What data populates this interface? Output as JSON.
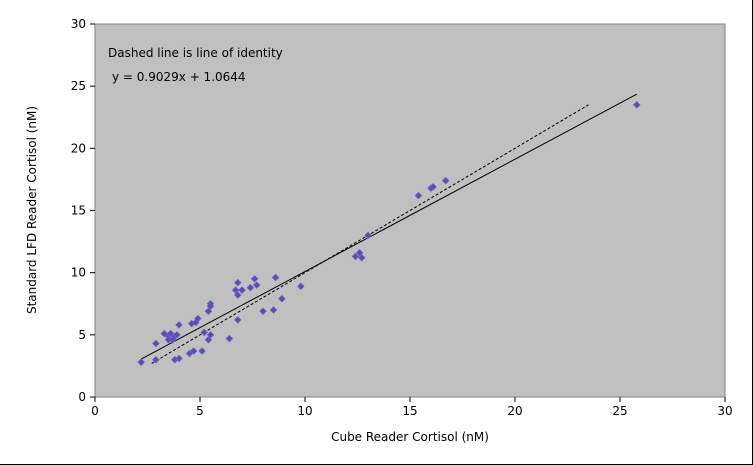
{
  "chart_data": {
    "type": "scatter",
    "xlabel": "Cube Reader Cortisol (nM)",
    "ylabel": "Standard LFD Reader Cortisol (nM)",
    "xlim": [
      0,
      30
    ],
    "ylim": [
      0,
      30
    ],
    "x_ticks": [
      "0",
      "5",
      "10",
      "15",
      "20",
      "25",
      "30"
    ],
    "y_ticks": [
      "0",
      "5",
      "10",
      "15",
      "20",
      "25",
      "30"
    ],
    "annotations": [
      "Dashed line is line of identity",
      "y = 0.9029x + 1.0644"
    ],
    "colors": {
      "plot_background": "#c0c0c0",
      "marker_fill": "#7b3fa0",
      "marker_edge": "#4a6fd6",
      "line": "#000000"
    },
    "grid": false,
    "legend": "none",
    "trendline": {
      "slope": 0.9029,
      "intercept": 1.0644,
      "x_range": [
        2.2,
        25.8
      ],
      "style": "solid"
    },
    "identity_line": {
      "x_range": [
        2.7,
        23.5
      ],
      "style": "dashed"
    },
    "series": [
      {
        "points": [
          [
            2.2,
            2.8
          ],
          [
            2.9,
            4.3
          ],
          [
            2.9,
            3.0
          ],
          [
            3.3,
            5.1
          ],
          [
            3.5,
            4.9
          ],
          [
            3.6,
            5.1
          ],
          [
            3.5,
            4.6
          ],
          [
            3.7,
            4.6
          ],
          [
            3.8,
            4.9
          ],
          [
            3.9,
            5.0
          ],
          [
            3.8,
            3.0
          ],
          [
            4.0,
            3.1
          ],
          [
            4.0,
            5.8
          ],
          [
            4.5,
            3.5
          ],
          [
            4.6,
            5.9
          ],
          [
            4.7,
            3.7
          ],
          [
            4.8,
            6.0
          ],
          [
            4.9,
            6.3
          ],
          [
            5.1,
            3.7
          ],
          [
            5.2,
            5.2
          ],
          [
            5.4,
            6.9
          ],
          [
            5.4,
            4.6
          ],
          [
            5.5,
            7.5
          ],
          [
            5.5,
            7.3
          ],
          [
            5.5,
            5.0
          ],
          [
            6.4,
            4.7
          ],
          [
            6.7,
            8.6
          ],
          [
            6.8,
            9.2
          ],
          [
            6.8,
            6.2
          ],
          [
            6.8,
            8.2
          ],
          [
            7.0,
            8.6
          ],
          [
            7.4,
            8.8
          ],
          [
            7.6,
            9.5
          ],
          [
            7.7,
            9.0
          ],
          [
            8.0,
            6.9
          ],
          [
            8.5,
            7.0
          ],
          [
            8.6,
            9.6
          ],
          [
            8.9,
            7.9
          ],
          [
            9.8,
            8.9
          ],
          [
            12.4,
            11.3
          ],
          [
            12.6,
            11.6
          ],
          [
            12.7,
            11.2
          ],
          [
            13.0,
            13.0
          ],
          [
            15.4,
            16.2
          ],
          [
            16.0,
            16.8
          ],
          [
            16.1,
            16.9
          ],
          [
            16.7,
            17.4
          ],
          [
            25.8,
            23.5
          ]
        ]
      }
    ]
  }
}
